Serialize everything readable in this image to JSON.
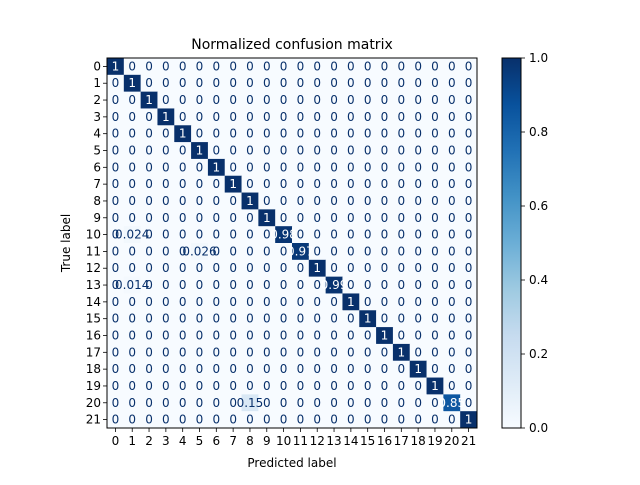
{
  "chart_data": {
    "type": "heatmap",
    "title": "Normalized confusion matrix",
    "xlabel": "Predicted label",
    "ylabel": "True label",
    "colormap": "Blues",
    "color_low": "#f7fbff",
    "color_high": "#08306b",
    "vmin": 0,
    "vmax": 1,
    "x_categories": [
      "0",
      "1",
      "2",
      "3",
      "4",
      "5",
      "6",
      "7",
      "8",
      "9",
      "10",
      "11",
      "12",
      "13",
      "14",
      "15",
      "16",
      "17",
      "18",
      "19",
      "20",
      "21"
    ],
    "y_categories": [
      "0",
      "1",
      "2",
      "3",
      "4",
      "5",
      "6",
      "7",
      "8",
      "9",
      "10",
      "11",
      "12",
      "13",
      "14",
      "15",
      "16",
      "17",
      "18",
      "19",
      "20",
      "21"
    ],
    "colorbar_ticks": [
      "0.0",
      "0.2",
      "0.4",
      "0.6",
      "0.8",
      "1.0"
    ],
    "values": [
      [
        1,
        0,
        0,
        0,
        0,
        0,
        0,
        0,
        0,
        0,
        0,
        0,
        0,
        0,
        0,
        0,
        0,
        0,
        0,
        0,
        0,
        0
      ],
      [
        0,
        1,
        0,
        0,
        0,
        0,
        0,
        0,
        0,
        0,
        0,
        0,
        0,
        0,
        0,
        0,
        0,
        0,
        0,
        0,
        0,
        0
      ],
      [
        0,
        0,
        1,
        0,
        0,
        0,
        0,
        0,
        0,
        0,
        0,
        0,
        0,
        0,
        0,
        0,
        0,
        0,
        0,
        0,
        0,
        0
      ],
      [
        0,
        0,
        0,
        1,
        0,
        0,
        0,
        0,
        0,
        0,
        0,
        0,
        0,
        0,
        0,
        0,
        0,
        0,
        0,
        0,
        0,
        0
      ],
      [
        0,
        0,
        0,
        0,
        1,
        0,
        0,
        0,
        0,
        0,
        0,
        0,
        0,
        0,
        0,
        0,
        0,
        0,
        0,
        0,
        0,
        0
      ],
      [
        0,
        0,
        0,
        0,
        0,
        1,
        0,
        0,
        0,
        0,
        0,
        0,
        0,
        0,
        0,
        0,
        0,
        0,
        0,
        0,
        0,
        0
      ],
      [
        0,
        0,
        0,
        0,
        0,
        0,
        1,
        0,
        0,
        0,
        0,
        0,
        0,
        0,
        0,
        0,
        0,
        0,
        0,
        0,
        0,
        0
      ],
      [
        0,
        0,
        0,
        0,
        0,
        0,
        0,
        1,
        0,
        0,
        0,
        0,
        0,
        0,
        0,
        0,
        0,
        0,
        0,
        0,
        0,
        0
      ],
      [
        0,
        0,
        0,
        0,
        0,
        0,
        0,
        0,
        1,
        0,
        0,
        0,
        0,
        0,
        0,
        0,
        0,
        0,
        0,
        0,
        0,
        0
      ],
      [
        0,
        0,
        0,
        0,
        0,
        0,
        0,
        0,
        0,
        1,
        0,
        0,
        0,
        0,
        0,
        0,
        0,
        0,
        0,
        0,
        0,
        0
      ],
      [
        0,
        0.024,
        0,
        0,
        0,
        0,
        0,
        0,
        0,
        0,
        0.98,
        0,
        0,
        0,
        0,
        0,
        0,
        0,
        0,
        0,
        0,
        0
      ],
      [
        0,
        0,
        0,
        0,
        0,
        0.026,
        0,
        0,
        0,
        0,
        0,
        0.97,
        0,
        0,
        0,
        0,
        0,
        0,
        0,
        0,
        0,
        0
      ],
      [
        0,
        0,
        0,
        0,
        0,
        0,
        0,
        0,
        0,
        0,
        0,
        0,
        1,
        0,
        0,
        0,
        0,
        0,
        0,
        0,
        0,
        0
      ],
      [
        0,
        0.014,
        0,
        0,
        0,
        0,
        0,
        0,
        0,
        0,
        0,
        0,
        0,
        0.99,
        0,
        0,
        0,
        0,
        0,
        0,
        0,
        0
      ],
      [
        0,
        0,
        0,
        0,
        0,
        0,
        0,
        0,
        0,
        0,
        0,
        0,
        0,
        0,
        1,
        0,
        0,
        0,
        0,
        0,
        0,
        0
      ],
      [
        0,
        0,
        0,
        0,
        0,
        0,
        0,
        0,
        0,
        0,
        0,
        0,
        0,
        0,
        0,
        1,
        0,
        0,
        0,
        0,
        0,
        0
      ],
      [
        0,
        0,
        0,
        0,
        0,
        0,
        0,
        0,
        0,
        0,
        0,
        0,
        0,
        0,
        0,
        0,
        1,
        0,
        0,
        0,
        0,
        0
      ],
      [
        0,
        0,
        0,
        0,
        0,
        0,
        0,
        0,
        0,
        0,
        0,
        0,
        0,
        0,
        0,
        0,
        0,
        1,
        0,
        0,
        0,
        0
      ],
      [
        0,
        0,
        0,
        0,
        0,
        0,
        0,
        0,
        0,
        0,
        0,
        0,
        0,
        0,
        0,
        0,
        0,
        0,
        1,
        0,
        0,
        0
      ],
      [
        0,
        0,
        0,
        0,
        0,
        0,
        0,
        0,
        0,
        0,
        0,
        0,
        0,
        0,
        0,
        0,
        0,
        0,
        0,
        1,
        0,
        0
      ],
      [
        0,
        0,
        0,
        0,
        0,
        0,
        0,
        0,
        0.15,
        0,
        0,
        0,
        0,
        0,
        0,
        0,
        0,
        0,
        0,
        0,
        0.85,
        0
      ],
      [
        0,
        0,
        0,
        0,
        0,
        0,
        0,
        0,
        0,
        0,
        0,
        0,
        0,
        0,
        0,
        0,
        0,
        0,
        0,
        0,
        0,
        1
      ]
    ],
    "cell_labels": [
      [
        "1",
        "0",
        "0",
        "0",
        "0",
        "0",
        "0",
        "0",
        "0",
        "0",
        "0",
        "0",
        "0",
        "0",
        "0",
        "0",
        "0",
        "0",
        "0",
        "0",
        "0",
        "0"
      ],
      [
        "0",
        "1",
        "0",
        "0",
        "0",
        "0",
        "0",
        "0",
        "0",
        "0",
        "0",
        "0",
        "0",
        "0",
        "0",
        "0",
        "0",
        "0",
        "0",
        "0",
        "0",
        "0"
      ],
      [
        "0",
        "0",
        "1",
        "0",
        "0",
        "0",
        "0",
        "0",
        "0",
        "0",
        "0",
        "0",
        "0",
        "0",
        "0",
        "0",
        "0",
        "0",
        "0",
        "0",
        "0",
        "0"
      ],
      [
        "0",
        "0",
        "0",
        "1",
        "0",
        "0",
        "0",
        "0",
        "0",
        "0",
        "0",
        "0",
        "0",
        "0",
        "0",
        "0",
        "0",
        "0",
        "0",
        "0",
        "0",
        "0"
      ],
      [
        "0",
        "0",
        "0",
        "0",
        "1",
        "0",
        "0",
        "0",
        "0",
        "0",
        "0",
        "0",
        "0",
        "0",
        "0",
        "0",
        "0",
        "0",
        "0",
        "0",
        "0",
        "0"
      ],
      [
        "0",
        "0",
        "0",
        "0",
        "0",
        "1",
        "0",
        "0",
        "0",
        "0",
        "0",
        "0",
        "0",
        "0",
        "0",
        "0",
        "0",
        "0",
        "0",
        "0",
        "0",
        "0"
      ],
      [
        "0",
        "0",
        "0",
        "0",
        "0",
        "0",
        "1",
        "0",
        "0",
        "0",
        "0",
        "0",
        "0",
        "0",
        "0",
        "0",
        "0",
        "0",
        "0",
        "0",
        "0",
        "0"
      ],
      [
        "0",
        "0",
        "0",
        "0",
        "0",
        "0",
        "0",
        "1",
        "0",
        "0",
        "0",
        "0",
        "0",
        "0",
        "0",
        "0",
        "0",
        "0",
        "0",
        "0",
        "0",
        "0"
      ],
      [
        "0",
        "0",
        "0",
        "0",
        "0",
        "0",
        "0",
        "0",
        "1",
        "0",
        "0",
        "0",
        "0",
        "0",
        "0",
        "0",
        "0",
        "0",
        "0",
        "0",
        "0",
        "0"
      ],
      [
        "0",
        "0",
        "0",
        "0",
        "0",
        "0",
        "0",
        "0",
        "0",
        "1",
        "0",
        "0",
        "0",
        "0",
        "0",
        "0",
        "0",
        "0",
        "0",
        "0",
        "0",
        "0"
      ],
      [
        "0",
        "0.024",
        "0",
        "0",
        "0",
        "0",
        "0",
        "0",
        "0",
        "0",
        "0.98",
        "0",
        "0",
        "0",
        "0",
        "0",
        "0",
        "0",
        "0",
        "0",
        "0",
        "0"
      ],
      [
        "0",
        "0",
        "0",
        "0",
        "0",
        "0.026",
        "0",
        "0",
        "0",
        "0",
        "0",
        "0.97",
        "0",
        "0",
        "0",
        "0",
        "0",
        "0",
        "0",
        "0",
        "0",
        "0"
      ],
      [
        "0",
        "0",
        "0",
        "0",
        "0",
        "0",
        "0",
        "0",
        "0",
        "0",
        "0",
        "0",
        "1",
        "0",
        "0",
        "0",
        "0",
        "0",
        "0",
        "0",
        "0",
        "0"
      ],
      [
        "0",
        "0.014",
        "0",
        "0",
        "0",
        "0",
        "0",
        "0",
        "0",
        "0",
        "0",
        "0",
        "0",
        "0.99",
        "0",
        "0",
        "0",
        "0",
        "0",
        "0",
        "0",
        "0"
      ],
      [
        "0",
        "0",
        "0",
        "0",
        "0",
        "0",
        "0",
        "0",
        "0",
        "0",
        "0",
        "0",
        "0",
        "0",
        "1",
        "0",
        "0",
        "0",
        "0",
        "0",
        "0",
        "0"
      ],
      [
        "0",
        "0",
        "0",
        "0",
        "0",
        "0",
        "0",
        "0",
        "0",
        "0",
        "0",
        "0",
        "0",
        "0",
        "0",
        "1",
        "0",
        "0",
        "0",
        "0",
        "0",
        "0"
      ],
      [
        "0",
        "0",
        "0",
        "0",
        "0",
        "0",
        "0",
        "0",
        "0",
        "0",
        "0",
        "0",
        "0",
        "0",
        "0",
        "0",
        "1",
        "0",
        "0",
        "0",
        "0",
        "0"
      ],
      [
        "0",
        "0",
        "0",
        "0",
        "0",
        "0",
        "0",
        "0",
        "0",
        "0",
        "0",
        "0",
        "0",
        "0",
        "0",
        "0",
        "0",
        "1",
        "0",
        "0",
        "0",
        "0"
      ],
      [
        "0",
        "0",
        "0",
        "0",
        "0",
        "0",
        "0",
        "0",
        "0",
        "0",
        "0",
        "0",
        "0",
        "0",
        "0",
        "0",
        "0",
        "0",
        "1",
        "0",
        "0",
        "0"
      ],
      [
        "0",
        "0",
        "0",
        "0",
        "0",
        "0",
        "0",
        "0",
        "0",
        "0",
        "0",
        "0",
        "0",
        "0",
        "0",
        "0",
        "0",
        "0",
        "0",
        "1",
        "0",
        "0"
      ],
      [
        "0",
        "0",
        "0",
        "0",
        "0",
        "0",
        "0",
        "0",
        "0.15",
        "0",
        "0",
        "0",
        "0",
        "0",
        "0",
        "0",
        "0",
        "0",
        "0",
        "0",
        "0.85",
        "0"
      ],
      [
        "0",
        "0",
        "0",
        "0",
        "0",
        "0",
        "0",
        "0",
        "0",
        "0",
        "0",
        "0",
        "0",
        "0",
        "0",
        "0",
        "0",
        "0",
        "0",
        "0",
        "0",
        "1"
      ]
    ],
    "grid": false,
    "legend": "none",
    "colorbar_position": "right"
  }
}
